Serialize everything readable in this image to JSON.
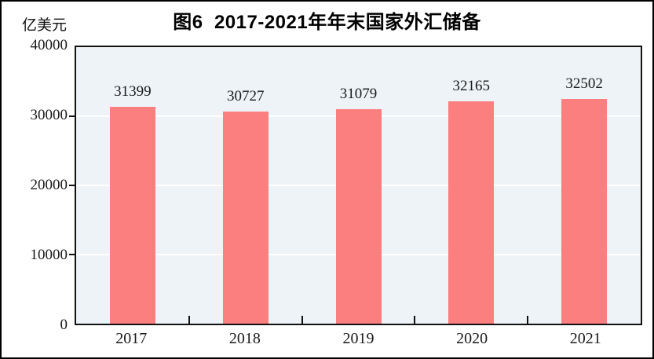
{
  "chart_data": {
    "type": "bar",
    "title": "图6  2017-2021年年末国家外汇储备",
    "ylabel": "亿美元",
    "xlabel": "",
    "categories": [
      "2017",
      "2018",
      "2019",
      "2020",
      "2021"
    ],
    "values": [
      31399,
      30727,
      31079,
      32165,
      32502
    ],
    "ylim": [
      0,
      40000
    ],
    "yticks": [
      0,
      10000,
      20000,
      30000,
      40000
    ],
    "grid": true,
    "legend_position": "none",
    "colors": {
      "bar": "#fc7f7f",
      "plot_background": "#edf3f6",
      "gridline": "#ffffff",
      "axis": "#111111",
      "text": "#1a1a1a",
      "figure_background": "#ffffff",
      "figure_border": "#000000"
    }
  }
}
